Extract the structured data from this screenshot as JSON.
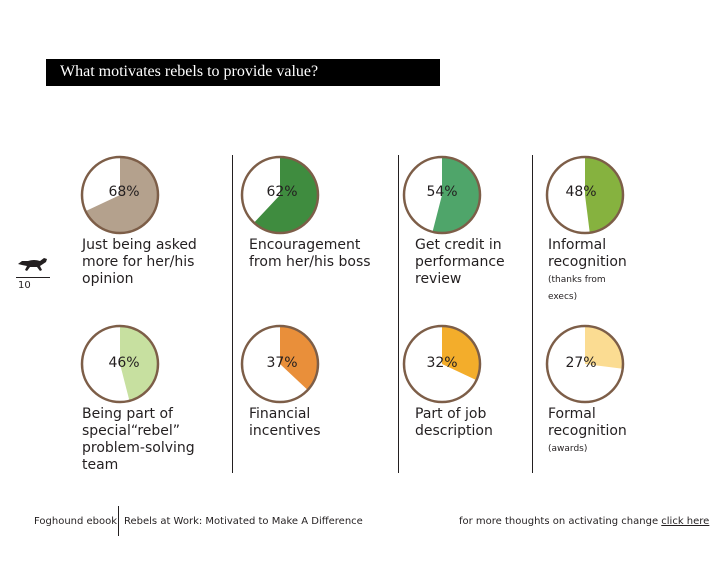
{
  "title": "What motivates rebels to provide value?",
  "page_number": "10",
  "footer": {
    "left": "Foghound ebook",
    "center": "Rebels at Work: Motivated to Make A Difference",
    "right_text": "for more thoughts on activating change",
    "right_link": "click here"
  },
  "icons": {
    "logo": "running-dog-logo"
  },
  "chart_data": {
    "type": "pie",
    "unit": "%",
    "colors": {
      "outline": "#7d5e48",
      "background": "#ffffff"
    },
    "items": [
      {
        "label": "Just being asked\nmore for her/his\nopinion",
        "note": "",
        "value": 68,
        "value_label": "68%",
        "color": "#b4a18d"
      },
      {
        "label": "Encouragement\nfrom her/his boss",
        "note": "",
        "value": 62,
        "value_label": "62%",
        "color": "#3f8c3f"
      },
      {
        "label": "Get credit in\nperformance\nreview",
        "note": "",
        "value": 54,
        "value_label": "54%",
        "color": "#4fa56a"
      },
      {
        "label": "Informal\nrecognition",
        "note": "(thanks from\nexecs)",
        "value": 48,
        "value_label": "48%",
        "color": "#86b23f"
      },
      {
        "label": "Being part of\nspecial“rebel”\nproblem-solving\nteam",
        "note": "",
        "value": 46,
        "value_label": "46%",
        "color": "#c7e0a0"
      },
      {
        "label": "Financial\nincentives",
        "note": "",
        "value": 37,
        "value_label": "37%",
        "color": "#e98f3a"
      },
      {
        "label": "Part of job\ndescription",
        "note": "",
        "value": 32,
        "value_label": "32%",
        "color": "#f3ad2b"
      },
      {
        "label": "Formal\nrecognition",
        "note": "(awards)",
        "value": 27,
        "value_label": "27%",
        "color": "#fbdc92"
      }
    ]
  }
}
